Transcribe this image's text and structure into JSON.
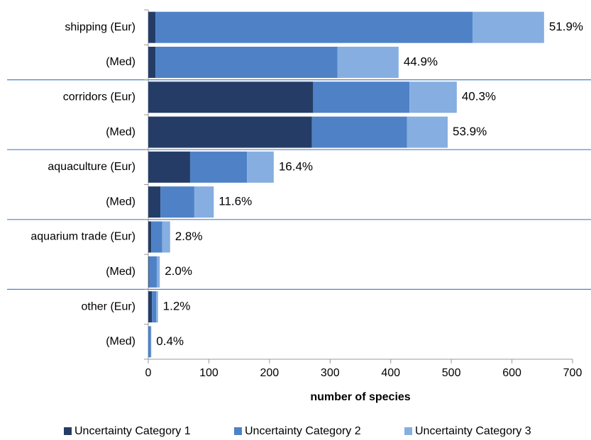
{
  "chart_data": {
    "type": "stacked_barh",
    "categories": [
      "shipping (Eur)",
      "(Med)",
      "corridors (Eur)",
      "(Med)",
      "aquaculture (Eur)",
      "(Med)",
      "aquarium trade (Eur)",
      "(Med)",
      "other (Eur)",
      "(Med)"
    ],
    "series": [
      {
        "name": "Uncertainty Category 1",
        "color": "#253d66",
        "values": [
          12,
          12,
          272,
          270,
          69,
          20,
          5,
          1,
          6,
          0
        ]
      },
      {
        "name": "Uncertainty Category 2",
        "color": "#4f81c7",
        "values": [
          523,
          300,
          159,
          157,
          94,
          56,
          18,
          13,
          7,
          4
        ]
      },
      {
        "name": "Uncertainty Category 3",
        "color": "#86aee0",
        "values": [
          118,
          101,
          78,
          67,
          44,
          32,
          13,
          5,
          3,
          1
        ]
      }
    ],
    "annotations": [
      "51.9%",
      "44.9%",
      "40.3%",
      "53.9%",
      "16.4%",
      "11.6%",
      "2.8%",
      "2.0%",
      "1.2%",
      "0.4%"
    ],
    "annotation_colors": [
      "#c0504d",
      "#000000",
      "#c0504d",
      "#000000",
      "#c0504d",
      "#000000",
      "#c0504d",
      "#000000",
      "#c0504d",
      "#000000"
    ],
    "xlabel": "number of species",
    "xlim": [
      0,
      700
    ],
    "xticks": [
      0,
      100,
      200,
      300,
      400,
      500,
      600,
      700
    ],
    "legend": "bottom"
  }
}
